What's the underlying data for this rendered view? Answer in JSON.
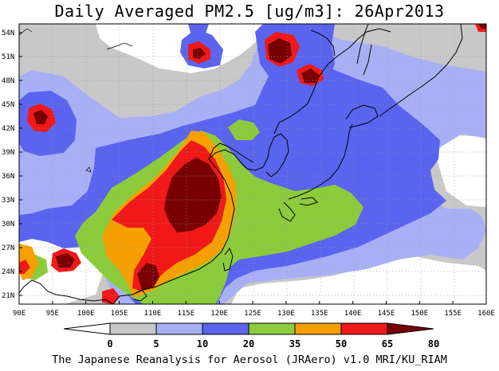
{
  "title": "Daily Averaged PM2.5 [ug/m3]: 26Apr2013",
  "credit": "The Japanese Reanalysis for Aerosol (JRAero) v1.0 MRI/KU_RIAM",
  "map": {
    "lon_labels": [
      "90E",
      "95E",
      "100E",
      "105E",
      "110E",
      "115E",
      "120E",
      "125E",
      "130E",
      "135E",
      "140E",
      "145E",
      "150E",
      "155E",
      "160E"
    ],
    "lat_labels": [
      "54N",
      "51N",
      "48N",
      "45N",
      "42N",
      "39N",
      "36N",
      "33N",
      "30N",
      "27N",
      "24N",
      "21N"
    ]
  },
  "colorbar": {
    "ticks": [
      "0",
      "5",
      "10",
      "20",
      "35",
      "50",
      "65",
      "80"
    ],
    "bins": [
      {
        "color": "#ffffff"
      },
      {
        "color": "#c8c8c8"
      },
      {
        "color": "#a8b0f5"
      },
      {
        "color": "#5a64ee"
      },
      {
        "color": "#8ccc3c"
      },
      {
        "color": "#f5a000"
      },
      {
        "color": "#f01818"
      },
      {
        "color": "#780000"
      }
    ]
  },
  "colors": {
    "white": "#ffffff",
    "grey": "#c8c8c8",
    "light_blue": "#a8b0f5",
    "blue": "#5a64ee",
    "green": "#8ccc3c",
    "orange": "#f5a000",
    "red": "#f01818",
    "dark_red": "#780000"
  }
}
